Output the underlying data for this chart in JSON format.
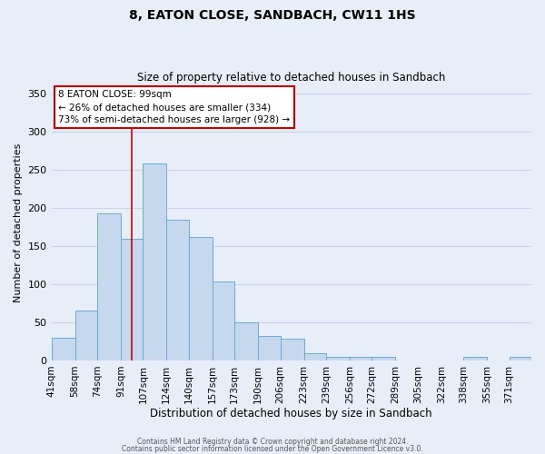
{
  "title": "8, EATON CLOSE, SANDBACH, CW11 1HS",
  "subtitle": "Size of property relative to detached houses in Sandbach",
  "xlabel": "Distribution of detached houses by size in Sandbach",
  "ylabel": "Number of detached properties",
  "bin_labels": [
    "41sqm",
    "58sqm",
    "74sqm",
    "91sqm",
    "107sqm",
    "124sqm",
    "140sqm",
    "157sqm",
    "173sqm",
    "190sqm",
    "206sqm",
    "223sqm",
    "239sqm",
    "256sqm",
    "272sqm",
    "289sqm",
    "305sqm",
    "322sqm",
    "338sqm",
    "355sqm",
    "371sqm"
  ],
  "bin_edges": [
    41,
    58,
    74,
    91,
    107,
    124,
    140,
    157,
    173,
    190,
    206,
    223,
    239,
    256,
    272,
    289,
    305,
    322,
    338,
    355,
    371,
    387
  ],
  "bar_heights": [
    30,
    65,
    193,
    160,
    258,
    184,
    162,
    103,
    50,
    32,
    28,
    10,
    5,
    5,
    5,
    0,
    0,
    0,
    5,
    0,
    5
  ],
  "bar_color": "#c5d8ee",
  "bar_edgecolor": "#6aabd6",
  "ylim": [
    0,
    360
  ],
  "yticks": [
    0,
    50,
    100,
    150,
    200,
    250,
    300,
    350
  ],
  "red_line_x": 99,
  "annotation_title": "8 EATON CLOSE: 99sqm",
  "annotation_line1": "← 26% of detached houses are smaller (334)",
  "annotation_line2": "73% of semi-detached houses are larger (928) →",
  "annotation_box_facecolor": "#ffffff",
  "annotation_box_edgecolor": "#cc0000",
  "red_line_color": "#cc0000",
  "grid_color": "#c8d4e8",
  "footer1": "Contains HM Land Registry data © Crown copyright and database right 2024.",
  "footer2": "Contains public sector information licensed under the Open Government Licence v3.0.",
  "bg_color": "#e8eef8"
}
